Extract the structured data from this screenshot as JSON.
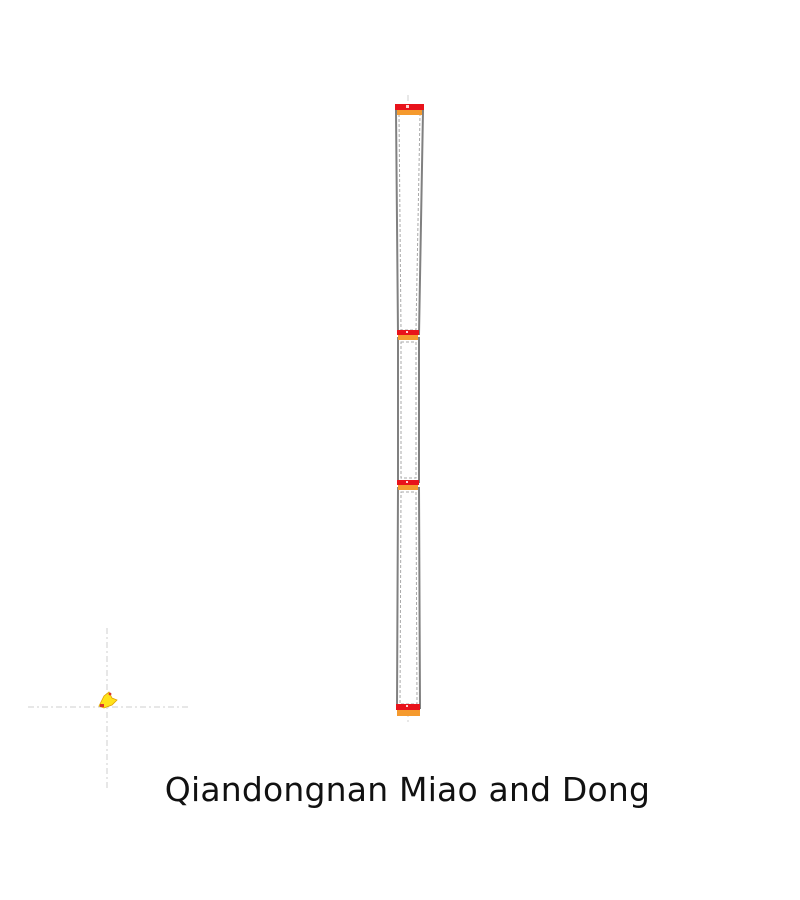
{
  "caption": "Qiandongnan Miao and Dong",
  "colors": {
    "background": "#ffffff",
    "column_outline": "#7f7f7f",
    "column_fill": "#ffffff",
    "centerline": "#c8c8c8",
    "marker_top": "#e8131b",
    "marker_bottom": "#f59a2e",
    "figure": "#ffe21a",
    "caption_text": "#111111"
  },
  "elements": {
    "column": "column-outline",
    "markers": [
      "top",
      "upper-middle",
      "lower-middle",
      "bottom"
    ],
    "figure": "yellow-figure-with-crosshair"
  }
}
